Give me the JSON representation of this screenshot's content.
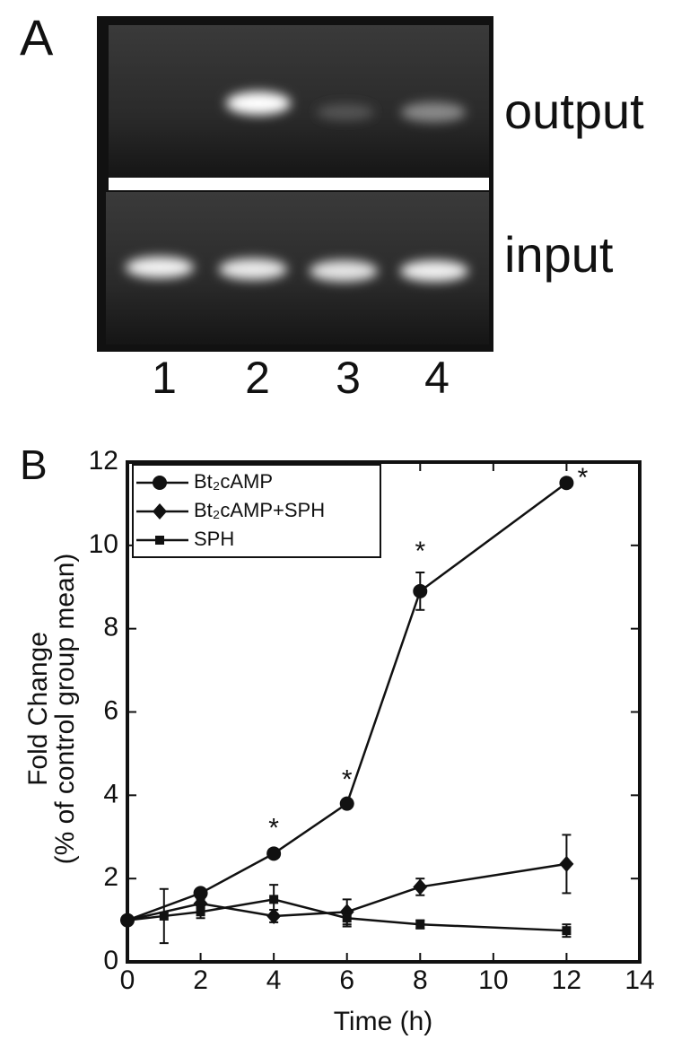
{
  "panel_a": {
    "label": "A",
    "rows": [
      "output",
      "input"
    ],
    "lanes": [
      "1",
      "2",
      "3",
      "4"
    ]
  },
  "chart_data": {
    "type": "line",
    "panel_label": "B",
    "xlabel": "Time (h)",
    "ylabel": [
      "Fold Change",
      "(% of control group mean)"
    ],
    "xlim": [
      0,
      14
    ],
    "ylim": [
      0,
      12
    ],
    "xticks": [
      0,
      2,
      4,
      6,
      8,
      10,
      12,
      14
    ],
    "yticks": [
      0,
      2,
      4,
      6,
      8,
      10,
      12
    ],
    "legend": "upper-left",
    "series": [
      {
        "name": "Bt₂cAMP",
        "color": "#111111",
        "marker": "circle",
        "x": [
          0,
          2,
          4,
          6,
          8,
          12
        ],
        "values": [
          1.0,
          1.65,
          2.6,
          3.8,
          8.9,
          11.5
        ],
        "errors": [
          0.05,
          0.08,
          0.1,
          0.07,
          0.45,
          0.08
        ],
        "point_labels": [
          null,
          null,
          "*",
          "*",
          "*",
          "*"
        ]
      },
      {
        "name": "Bt₂cAMP+SPH",
        "color": "#111111",
        "marker": "diamond",
        "x": [
          0,
          2,
          4,
          6,
          8,
          12
        ],
        "values": [
          1.0,
          1.4,
          1.1,
          1.2,
          1.8,
          2.35
        ],
        "errors": [
          0.05,
          0.1,
          0.15,
          0.3,
          0.2,
          0.7
        ]
      },
      {
        "name": "SPH",
        "color": "#111111",
        "marker": "square",
        "x": [
          0,
          1,
          2,
          4,
          6,
          8,
          12
        ],
        "values": [
          1.0,
          1.1,
          1.2,
          1.5,
          1.05,
          0.9,
          0.75
        ],
        "errors": [
          0.05,
          0.65,
          0.15,
          0.35,
          0.2,
          0.1,
          0.15
        ]
      }
    ]
  }
}
